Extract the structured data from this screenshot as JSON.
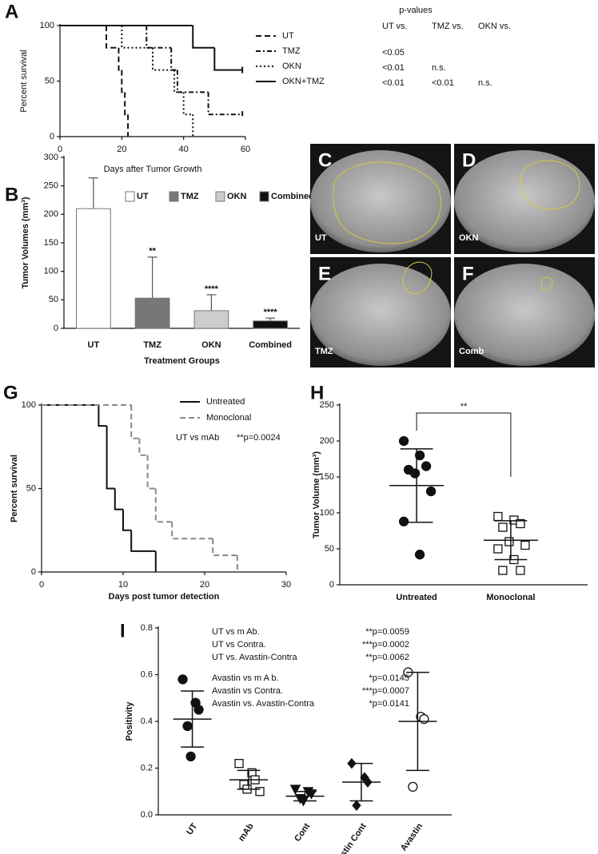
{
  "chart_data": [
    {
      "type": "step",
      "panel": "A",
      "xlabel": "Days after Tumor Growth",
      "ylabel": "Percent survival",
      "xlim": [
        0,
        60
      ],
      "xticks": [
        0,
        20,
        40,
        60
      ],
      "ylim": [
        0,
        100
      ],
      "yticks": [
        0,
        50,
        100
      ],
      "series": [
        {
          "name": "UT",
          "color": "#111111",
          "line_style": "dashed",
          "x": [
            0,
            15,
            19,
            20,
            21,
            22
          ],
          "values": [
            100,
            80,
            60,
            40,
            20,
            0
          ]
        },
        {
          "name": "TMZ",
          "color": "#111111",
          "line_style": "dashdot",
          "x": [
            0,
            28,
            36,
            38,
            48,
            59
          ],
          "values": [
            100,
            80,
            60,
            40,
            20,
            20
          ]
        },
        {
          "name": "OKN",
          "color": "#111111",
          "line_style": "dotted",
          "x": [
            0,
            20,
            30,
            37,
            40,
            43
          ],
          "values": [
            100,
            80,
            60,
            40,
            20,
            0
          ]
        },
        {
          "name": "OKN+TMZ",
          "color": "#111111",
          "line_style": "solid",
          "x": [
            0,
            43,
            50,
            59
          ],
          "values": [
            100,
            80,
            60,
            60
          ]
        }
      ],
      "pvalues": {
        "title": "p-values",
        "columns": [
          "UT vs.",
          "TMZ vs.",
          "OKN vs."
        ],
        "rows": [
          [
            "<0.05"
          ],
          [
            "<0.01",
            "n.s."
          ],
          [
            "<0.01",
            "<0.01",
            "n.s."
          ]
        ]
      }
    },
    {
      "type": "bar",
      "panel": "B",
      "xlabel": "Treatment Groups",
      "ylabel": "Tumor Volumes (mm³)",
      "categories": [
        "UT",
        "TMZ",
        "OKN",
        "Combined"
      ],
      "values": [
        210,
        53,
        31,
        13
      ],
      "errors": [
        54,
        72,
        28,
        5
      ],
      "colors": [
        "#ffffff",
        "#777777",
        "#cccccc",
        "#111111"
      ],
      "significance": [
        null,
        "**",
        "****",
        "****"
      ],
      "ylim": [
        0,
        300
      ],
      "yticks": [
        0,
        50,
        100,
        150,
        200,
        250,
        300
      ]
    },
    {
      "type": "step",
      "panel": "G",
      "xlabel": "Days post tumor detection",
      "ylabel": "Percent survival",
      "xlim": [
        0,
        30
      ],
      "xticks": [
        0,
        10,
        20,
        30
      ],
      "ylim": [
        0,
        100
      ],
      "yticks": [
        0,
        50,
        100
      ],
      "series": [
        {
          "name": "Untreated",
          "color": "#111111",
          "line_style": "solid",
          "x": [
            0,
            7,
            8,
            9,
            10,
            11,
            14
          ],
          "values": [
            100,
            87.5,
            50,
            37.5,
            25,
            12.5,
            0
          ]
        },
        {
          "name": "Monoclonal",
          "color": "#888888",
          "line_style": "dashed",
          "x": [
            0,
            11,
            12,
            13,
            14,
            16,
            21,
            24
          ],
          "values": [
            100,
            80,
            70,
            50,
            30,
            20,
            10,
            0
          ]
        }
      ],
      "annotation": {
        "label": "UT vs mAb",
        "p": "**p=0.0024"
      }
    },
    {
      "type": "dot",
      "panel": "H",
      "ylabel": "Tumor Volume (mm³)",
      "ylim": [
        0,
        250
      ],
      "yticks": [
        0,
        50,
        100,
        150,
        200,
        250
      ],
      "groups": [
        {
          "name": "Untreated",
          "marker": "circle",
          "filled": true,
          "values": [
            200,
            180,
            165,
            160,
            155,
            130,
            88,
            42
          ],
          "mean": 138,
          "sd": 51
        },
        {
          "name": "Monoclonal",
          "marker": "square",
          "filled": false,
          "values": [
            95,
            90,
            85,
            80,
            60,
            55,
            50,
            35,
            20,
            20
          ],
          "mean": 62,
          "sd": 27
        }
      ],
      "significance": "**"
    },
    {
      "type": "dot",
      "panel": "I",
      "ylabel": "Positivity",
      "ylim": [
        0,
        0.8
      ],
      "yticks": [
        {
          "value": 0,
          "label": "0.0"
        },
        0.2,
        0.4,
        0.6,
        0.8
      ],
      "groups": [
        {
          "name": "UT",
          "marker": "circle",
          "filled": true,
          "values": [
            0.58,
            0.48,
            0.45,
            0.38,
            0.25
          ],
          "mean": 0.41,
          "sd": 0.12
        },
        {
          "name": "mAb",
          "marker": "square",
          "filled": false,
          "values": [
            0.22,
            0.18,
            0.15,
            0.13,
            0.11,
            0.1
          ],
          "mean": 0.15,
          "sd": 0.04
        },
        {
          "name": "Cont",
          "marker": "triangle-down",
          "filled": true,
          "values": [
            0.11,
            0.1,
            0.09,
            0.07,
            0.06
          ],
          "mean": 0.08,
          "sd": 0.02
        },
        {
          "name": "Avastin Cont",
          "marker": "diamond",
          "filled": true,
          "values": [
            0.22,
            0.16,
            0.14,
            0.04
          ],
          "mean": 0.14,
          "sd": 0.08
        },
        {
          "name": "Avastin",
          "marker": "circle",
          "filled": false,
          "values": [
            0.61,
            0.42,
            0.41,
            0.12
          ],
          "mean": 0.4,
          "sd": 0.21
        }
      ],
      "comparisons": [
        [
          {
            "label": "UT vs m Ab.",
            "p": "**p=0.0059"
          },
          {
            "label": "UT vs Contra.",
            "p": "***p=0.0002"
          },
          {
            "label": "UT vs. Avastin-Contra",
            "p": "**p=0.0062"
          }
        ],
        [
          {
            "label": "Avastin vs m A b.",
            "p": "*p=0.0145"
          },
          {
            "label": "Avastin vs Contra.",
            "p": "***p=0.0007"
          },
          {
            "label": "Avastin vs. Avastin-Contra",
            "p": "*p=0.0141"
          }
        ]
      ]
    }
  ],
  "images": [
    {
      "letter": "C",
      "label": "UT"
    },
    {
      "letter": "D",
      "label": "OKN"
    },
    {
      "letter": "E",
      "label": "TMZ"
    },
    {
      "letter": "F",
      "label": "Comb"
    }
  ]
}
